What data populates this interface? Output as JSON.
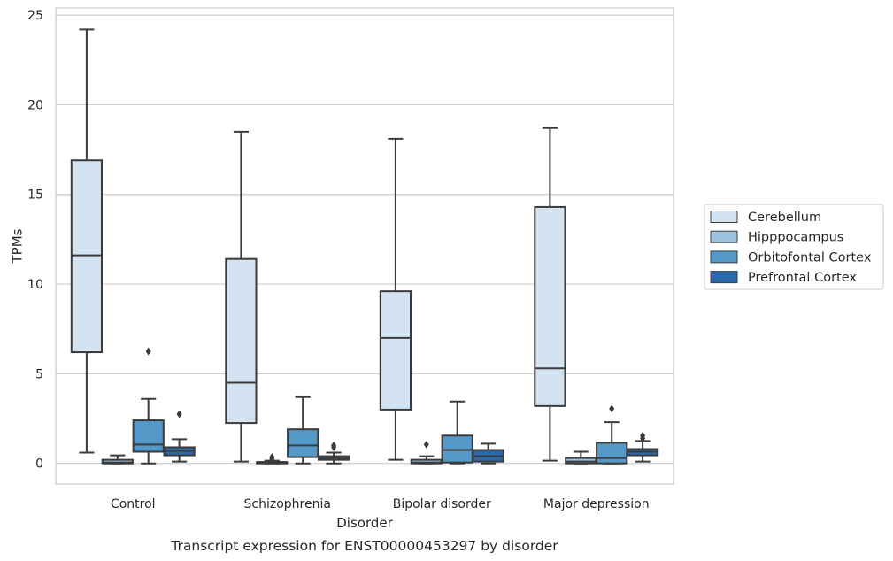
{
  "chart_data": {
    "type": "boxplot",
    "xlabel": "Disorder",
    "ylabel": "TPMs",
    "caption": "Transcript expression for ENST00000453297 by disorder",
    "ylim": [
      -1.15,
      25.4
    ],
    "yticks": [
      0,
      5,
      10,
      15,
      20,
      25
    ],
    "grid": true,
    "legend_position": "right",
    "categories": [
      "Control",
      "Schizophrenia",
      "Bipolar disorder",
      "Major depression"
    ],
    "series": [
      {
        "name": "Cerebellum",
        "color": "#d4e3f1",
        "boxes": [
          {
            "whislo": 0.6,
            "q1": 6.2,
            "med": 11.6,
            "q3": 16.9,
            "whishi": 24.2,
            "fliers": []
          },
          {
            "whislo": 0.1,
            "q1": 2.25,
            "med": 4.5,
            "q3": 11.4,
            "whishi": 18.5,
            "fliers": []
          },
          {
            "whislo": 0.2,
            "q1": 3.0,
            "med": 7.0,
            "q3": 9.6,
            "whishi": 18.1,
            "fliers": []
          },
          {
            "whislo": 0.15,
            "q1": 3.2,
            "med": 5.3,
            "q3": 14.3,
            "whishi": 18.7,
            "fliers": []
          }
        ]
      },
      {
        "name": "Hipppocampus",
        "color": "#9cc3de",
        "boxes": [
          {
            "whislo": 0.0,
            "q1": 0.0,
            "med": 0.05,
            "q3": 0.2,
            "whishi": 0.45,
            "fliers": []
          },
          {
            "whislo": 0.0,
            "q1": 0.0,
            "med": 0.02,
            "q3": 0.08,
            "whishi": 0.15,
            "fliers": [
              0.25,
              0.35
            ]
          },
          {
            "whislo": 0.0,
            "q1": 0.0,
            "med": 0.05,
            "q3": 0.2,
            "whishi": 0.4,
            "fliers": [
              1.05
            ]
          },
          {
            "whislo": 0.0,
            "q1": 0.0,
            "med": 0.1,
            "q3": 0.3,
            "whishi": 0.65,
            "fliers": []
          }
        ]
      },
      {
        "name": "Orbitofontal Cortex",
        "color": "#5599c8",
        "boxes": [
          {
            "whislo": 0.0,
            "q1": 0.65,
            "med": 1.05,
            "q3": 2.4,
            "whishi": 3.6,
            "fliers": [
              6.25
            ]
          },
          {
            "whislo": 0.0,
            "q1": 0.35,
            "med": 1.0,
            "q3": 1.9,
            "whishi": 3.7,
            "fliers": []
          },
          {
            "whislo": 0.0,
            "q1": 0.05,
            "med": 0.75,
            "q3": 1.55,
            "whishi": 3.45,
            "fliers": []
          },
          {
            "whislo": 0.0,
            "q1": 0.0,
            "med": 0.3,
            "q3": 1.15,
            "whishi": 2.3,
            "fliers": [
              3.05
            ]
          }
        ]
      },
      {
        "name": "Prefrontal Cortex",
        "color": "#2a6aaa",
        "boxes": [
          {
            "whislo": 0.1,
            "q1": 0.45,
            "med": 0.7,
            "q3": 0.9,
            "whishi": 1.35,
            "fliers": [
              2.75
            ]
          },
          {
            "whislo": 0.0,
            "q1": 0.2,
            "med": 0.3,
            "q3": 0.4,
            "whishi": 0.6,
            "fliers": [
              0.9,
              1.0
            ]
          },
          {
            "whislo": 0.0,
            "q1": 0.1,
            "med": 0.4,
            "q3": 0.75,
            "whishi": 1.1,
            "fliers": []
          },
          {
            "whislo": 0.1,
            "q1": 0.45,
            "med": 0.65,
            "q3": 0.8,
            "whishi": 1.25,
            "fliers": [
              1.4,
              1.55
            ]
          }
        ]
      }
    ]
  }
}
